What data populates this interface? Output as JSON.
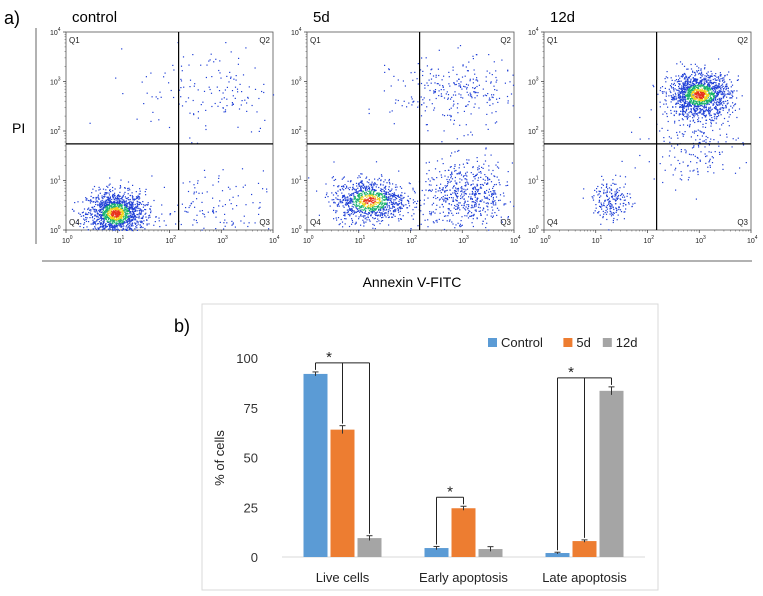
{
  "panel_a": {
    "label": "a)",
    "y_axis_label": "PI",
    "x_axis_label": "Annexin V-FITC",
    "quadrant_labels": [
      "Q1",
      "Q2",
      "Q3",
      "Q4"
    ],
    "tick_base": "10",
    "tick_exponents": [
      "0",
      "1",
      "2",
      "3",
      "4"
    ],
    "colors": {
      "dots": "#1f3fd6",
      "dense1": "#19b36b",
      "dense2": "#f2d21b",
      "dense3": "#e8301c",
      "gate": "#000000"
    }
  },
  "chart_data": [
    {
      "type": "scatter",
      "title": "control",
      "x_scale": "log",
      "y_scale": "log",
      "xlim": [
        1,
        10000
      ],
      "ylim": [
        1,
        10000
      ],
      "gate": {
        "x": 150,
        "y": 55
      },
      "populations": [
        {
          "center": [
            9,
            2.2
          ],
          "spread": [
            0.28,
            0.22
          ],
          "points": 1400,
          "density": "high"
        },
        {
          "center": [
            400,
            2
          ],
          "spread": [
            0.6,
            0.45
          ],
          "points": 180,
          "density": "low"
        },
        {
          "center": [
            600,
            700
          ],
          "spread": [
            0.7,
            0.45
          ],
          "points": 150,
          "density": "low"
        }
      ]
    },
    {
      "type": "scatter",
      "title": "5d",
      "x_scale": "log",
      "y_scale": "log",
      "xlim": [
        1,
        10000
      ],
      "ylim": [
        1,
        10000
      ],
      "gate": {
        "x": 150,
        "y": 55
      },
      "populations": [
        {
          "center": [
            16,
            4
          ],
          "spread": [
            0.35,
            0.22
          ],
          "points": 1000,
          "density": "high"
        },
        {
          "center": [
            1200,
            5
          ],
          "spread": [
            0.45,
            0.35
          ],
          "points": 600,
          "density": "low"
        },
        {
          "center": [
            700,
            600
          ],
          "spread": [
            0.6,
            0.35
          ],
          "points": 280,
          "density": "low"
        }
      ]
    },
    {
      "type": "scatter",
      "title": "12d",
      "x_scale": "log",
      "y_scale": "log",
      "xlim": [
        1,
        10000
      ],
      "ylim": [
        1,
        10000
      ],
      "gate": {
        "x": 150,
        "y": 55
      },
      "populations": [
        {
          "center": [
            1000,
            550
          ],
          "spread": [
            0.3,
            0.22
          ],
          "points": 1400,
          "density": "high"
        },
        {
          "center": [
            20,
            4
          ],
          "spread": [
            0.18,
            0.2
          ],
          "points": 200,
          "density": "low"
        },
        {
          "center": [
            800,
            60
          ],
          "spread": [
            0.45,
            0.4
          ],
          "points": 200,
          "density": "low"
        }
      ]
    },
    {
      "type": "bar",
      "panel_label": "b)",
      "categories": [
        "Live cells",
        "Early apoptosis",
        "Late apoptosis"
      ],
      "series": [
        {
          "name": "Control",
          "color": "#5b9bd5",
          "values": [
            92,
            4.5,
            2
          ],
          "errors": [
            1,
            0.8,
            0.4
          ]
        },
        {
          "name": "5d",
          "color": "#ed7d31",
          "values": [
            64,
            24.5,
            8
          ],
          "errors": [
            2,
            1,
            0.6
          ]
        },
        {
          "name": "12d",
          "color": "#a5a5a5",
          "values": [
            9.5,
            4,
            83.5
          ],
          "errors": [
            1.2,
            1.2,
            2
          ]
        }
      ],
      "ylabel": "% of cells",
      "ylim": [
        0,
        100
      ],
      "yticks": [
        0,
        25,
        50,
        75,
        100
      ],
      "legend": "top-right",
      "significance": [
        {
          "label": "*",
          "category": 0,
          "from_series": 0,
          "to_series": [
            1,
            2
          ]
        },
        {
          "label": "*",
          "category": 1,
          "from_series": 0,
          "to_series": [
            1
          ]
        },
        {
          "label": "*",
          "category": 2,
          "from_series": 0,
          "to_series": [
            1,
            2
          ]
        }
      ]
    }
  ]
}
